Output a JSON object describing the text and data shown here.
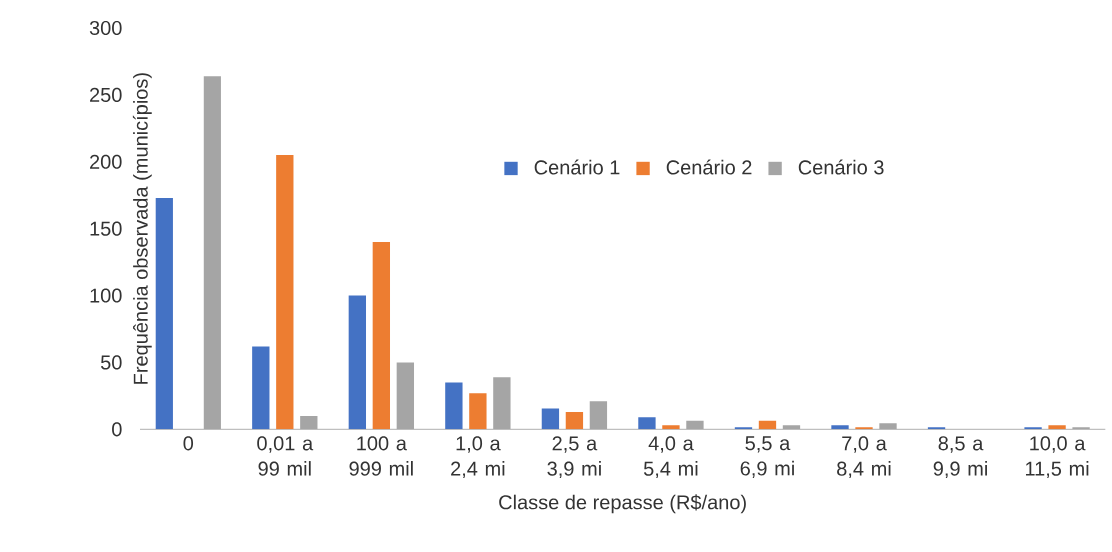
{
  "chart_data": {
    "type": "bar",
    "xlabel": "Classe de repasse (R$/ano)",
    "ylabel": "Frequência observada (municípios)",
    "categories": [
      "0",
      "0,01 a 99 mil",
      "100 a 999 mil",
      "1,0 a 2,4 mi",
      "2,5 a 3,9 mi",
      "4,0 a 5,4 mi",
      "5,5 a 6,9 mi",
      "7,0 a 8,4 mi",
      "8,5 a 9,9 mi",
      "10,0 a 11,5 mi"
    ],
    "series": [
      {
        "name": "Cenário 1",
        "color": "#4472c4",
        "values": [
          173,
          62,
          100,
          35,
          15.5,
          9,
          1.5,
          3,
          1.5,
          1.5
        ]
      },
      {
        "name": "Cenário 2",
        "color": "#ed7d31",
        "values": [
          0,
          205,
          140,
          27,
          13,
          3,
          6.5,
          1.5,
          0,
          3
        ]
      },
      {
        "name": "Cenário 3",
        "color": "#a5a5a5",
        "values": [
          264,
          10,
          50,
          39,
          21,
          6.5,
          3,
          4.5,
          0,
          1.5
        ]
      }
    ],
    "ylim": [
      0,
      300
    ],
    "yticks": [
      0,
      50,
      100,
      150,
      200,
      250,
      300
    ],
    "legend": "top right"
  }
}
